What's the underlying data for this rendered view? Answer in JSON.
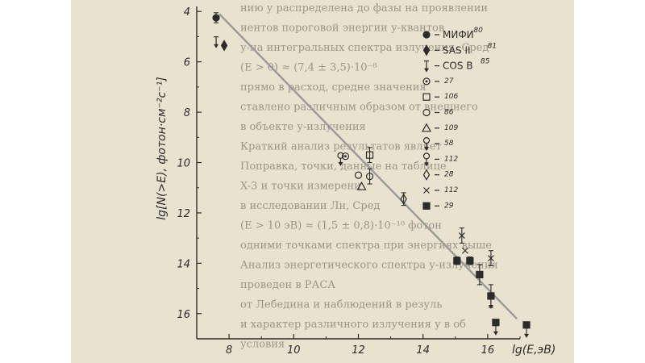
{
  "chart_data": {
    "type": "scatter",
    "xlabel": "lg(E,эВ)",
    "ylabel": "lg[N(>E), фотон·см⁻²с⁻¹]",
    "x_ticks": [
      "8",
      "10",
      "12",
      "14",
      "16"
    ],
    "y_ticks": [
      "4",
      "6",
      "8",
      "10",
      "12",
      "14",
      "16"
    ],
    "xlim": [
      7,
      17
    ],
    "ylim": [
      3.8,
      17.0
    ],
    "y_inverted": true,
    "grid": false,
    "legend_position": "right",
    "fit_line": {
      "from": [
        7.7,
        4.1
      ],
      "to": [
        16.9,
        16.2
      ]
    },
    "series": [
      {
        "name": "МИФИ",
        "ref": "80",
        "marker": "filled-circle",
        "points": [
          {
            "x": 7.6,
            "y": 4.25,
            "err": 0.2
          }
        ]
      },
      {
        "name": "SAS II",
        "ref": "81",
        "marker": "filled-diamond",
        "points": [
          {
            "x": 7.85,
            "y": 5.35,
            "err": 0.0
          }
        ]
      },
      {
        "name": "COS B",
        "ref": "85",
        "marker": "upper-limit",
        "points": [
          {
            "x": 7.6,
            "y": 5.2,
            "err": 0.0
          }
        ]
      },
      {
        "name": "",
        "ref": "27",
        "marker": "circle-dot",
        "points": [
          {
            "x": 11.6,
            "y": 9.75,
            "err": 0.0
          }
        ]
      },
      {
        "name": "",
        "ref": "106",
        "marker": "open-square",
        "points": [
          {
            "x": 12.35,
            "y": 9.7,
            "err": 0.3
          }
        ]
      },
      {
        "name": "",
        "ref": "86",
        "marker": "open-circle",
        "points": [
          {
            "x": 12.35,
            "y": 10.55,
            "err": 0.3
          }
        ]
      },
      {
        "name": "",
        "ref": "109",
        "marker": "open-triangle",
        "points": [
          {
            "x": 12.1,
            "y": 10.95,
            "err": 0.0
          }
        ]
      },
      {
        "name": "",
        "ref": "58",
        "marker": "circle-limit",
        "points": [
          {
            "x": 11.45,
            "y": 9.85,
            "err": 0.0
          }
        ]
      },
      {
        "name": "",
        "ref": "112",
        "marker": "open-circle",
        "points": [
          {
            "x": 12.0,
            "y": 10.5,
            "err": 0.0
          }
        ]
      },
      {
        "name": "",
        "ref": "28",
        "marker": "open-diamond",
        "points": [
          {
            "x": 13.4,
            "y": 11.45,
            "err": 0.25
          }
        ]
      },
      {
        "name": "",
        "ref": "112",
        "marker": "cross",
        "points": [
          {
            "x": 15.2,
            "y": 12.9,
            "err": 0.3
          },
          {
            "x": 15.3,
            "y": 13.5,
            "err": 0.0
          },
          {
            "x": 16.1,
            "y": 13.8,
            "err": 0.3
          }
        ]
      },
      {
        "name": "",
        "ref": "29",
        "marker": "filled-square",
        "points": [
          {
            "x": 15.05,
            "y": 13.9,
            "err": 0.15
          },
          {
            "x": 15.45,
            "y": 13.9,
            "err": 0.15
          },
          {
            "x": 15.75,
            "y": 14.45,
            "err": 0.4
          },
          {
            "x": 16.1,
            "y": 15.3,
            "err": 0.45
          },
          {
            "x": 16.25,
            "y": 16.35,
            "err": 0.0
          },
          {
            "x": 17.2,
            "y": 16.45,
            "err": 0.0
          }
        ]
      }
    ]
  },
  "legend": [
    {
      "label": "МИФИ",
      "ref": "80",
      "marker": "filled-circle"
    },
    {
      "label": "SAS II",
      "ref": "81",
      "marker": "filled-diamond"
    },
    {
      "label": "COS B",
      "ref": "85",
      "marker": "upper-limit"
    },
    {
      "label": "",
      "ref": "27",
      "marker": "circle-dot"
    },
    {
      "label": "",
      "ref": "106",
      "marker": "open-square"
    },
    {
      "label": "",
      "ref": "86",
      "marker": "open-circle"
    },
    {
      "label": "",
      "ref": "109",
      "marker": "open-triangle"
    },
    {
      "label": "",
      "ref": "58",
      "marker": "circle-limit"
    },
    {
      "label": "",
      "ref": "112",
      "marker": "open-circle-limit"
    },
    {
      "label": "",
      "ref": "28",
      "marker": "open-diamond"
    },
    {
      "label": "",
      "ref": "112",
      "marker": "cross"
    },
    {
      "label": "",
      "ref": "29",
      "marker": "filled-square"
    }
  ],
  "colors": {
    "paper": "#e9e2cf",
    "ink": "#2b2b2b",
    "fit_line": "#9a9a9a",
    "bleed_text": "#9b9588"
  },
  "background_text": [
    "нию у распределена до фазы на проявлении",
    "иентов пороговой энергии у-квантов",
    "у-на интегральных спектра излучения. Сред",
    "(E > 0) ≈ (7,4 ± 3,5)·10⁻⁸",
    "прямо в расход, средне значения",
    "ставлено различным образом от внешнего",
    "в объекте у-излучения",
    "Краткий анализ результатов являет",
    "Поправка, точки, данные на таблице",
    "X-3 и точки измерени",
    "в исследовании Лн, Сред",
    "(E > 10 эВ) ≈ (1,5 ± 0,8)·10⁻¹⁰ фотон",
    "одними точками спектра при энергиях выше",
    "Анализ энергетического спектра у-излучения",
    "проведен в РАСА",
    "от Лебедина и наблюдений в резуль",
    "и характер различного излучения у в об",
    "условия"
  ]
}
